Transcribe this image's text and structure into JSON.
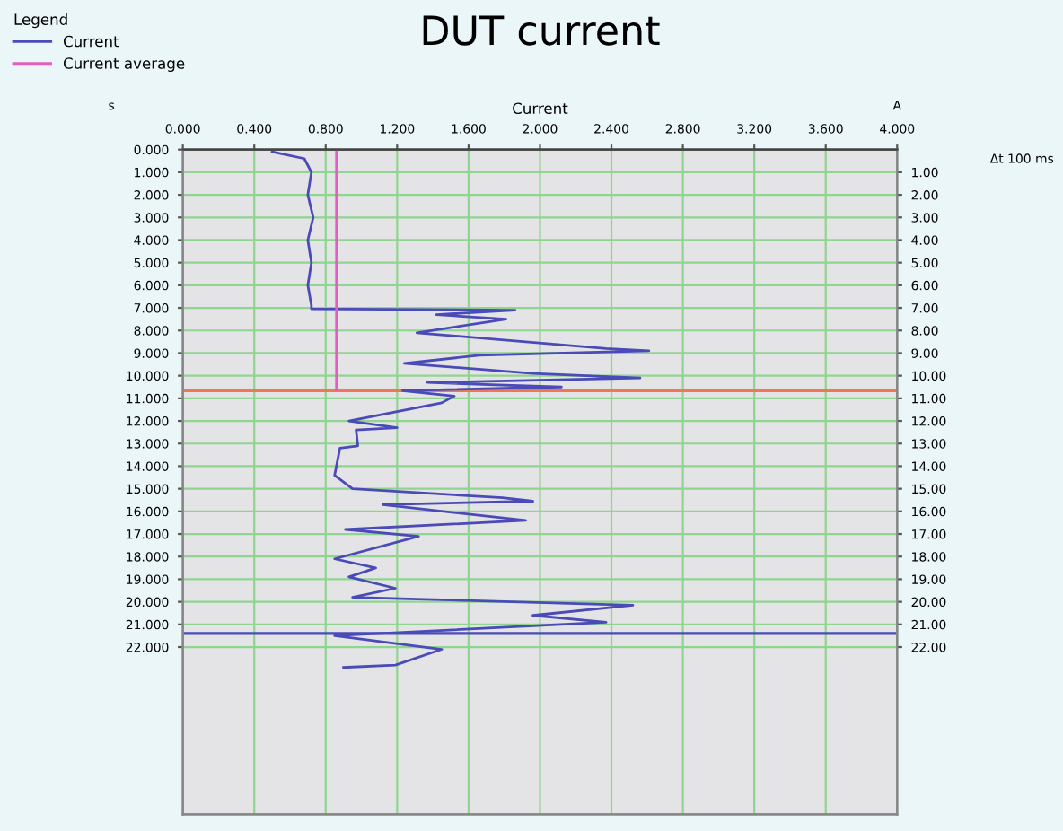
{
  "chart_data": {
    "type": "line",
    "title": "DUT current",
    "xlabel": "Current",
    "ylabel": "s",
    "y2label": "A",
    "legend_title": "Legend",
    "annotations": [
      "Δt 100 ms"
    ],
    "series": [
      {
        "name": "Current",
        "color": "#4a4ab8",
        "x": [
          0.5,
          0.68,
          0.72,
          0.7,
          0.73,
          0.7,
          0.72,
          0.7,
          0.72,
          0.72,
          1.86,
          1.42,
          1.81,
          1.31,
          2.37,
          2.61,
          1.66,
          1.24,
          1.96,
          2.56,
          1.37,
          2.12,
          1.23,
          1.52,
          1.45,
          0.93,
          1.2,
          0.97,
          0.98,
          0.88,
          0.85,
          0.95,
          1.79,
          1.96,
          1.12,
          1.92,
          0.91,
          1.32,
          0.85,
          1.08,
          0.93,
          1.19,
          0.95,
          2.52,
          1.96,
          2.37,
          0.85,
          1.45,
          1.19,
          0.9
        ],
        "values": [
          0.1,
          0.4,
          1.0,
          2.0,
          3.0,
          4.0,
          5.0,
          6.0,
          6.9,
          7.04,
          7.1,
          7.3,
          7.5,
          8.1,
          8.8,
          8.9,
          9.1,
          9.45,
          9.9,
          10.1,
          10.3,
          10.5,
          10.66,
          10.9,
          11.2,
          12.0,
          12.3,
          12.4,
          13.1,
          13.2,
          14.4,
          15.0,
          15.4,
          15.55,
          15.7,
          16.4,
          16.8,
          17.1,
          18.1,
          18.5,
          18.9,
          19.4,
          19.8,
          20.15,
          20.6,
          20.9,
          21.5,
          22.1,
          22.8,
          22.9
        ]
      },
      {
        "name": "Current average",
        "color": "#e060c0",
        "x": [
          0.86,
          0.86
        ],
        "values": [
          0,
          10.66
        ]
      }
    ],
    "ref_lines": [
      {
        "axis": "y",
        "value": 10.66,
        "color": "#f07850"
      },
      {
        "axis": "y",
        "value": 21.4,
        "color": "#4a4ab8"
      }
    ],
    "xlim": [
      0,
      4
    ],
    "ylim": [
      29.4,
      0
    ],
    "y2lim": [
      29.4,
      0
    ],
    "xticks": [
      {
        "value": 0,
        "label": "0.000"
      },
      {
        "value": 0.4,
        "label": "0.400"
      },
      {
        "value": 0.8,
        "label": "0.800"
      },
      {
        "value": 1.2,
        "label": "1.200"
      },
      {
        "value": 1.6,
        "label": "1.600"
      },
      {
        "value": 2.0,
        "label": "2.000"
      },
      {
        "value": 2.4,
        "label": "2.400"
      },
      {
        "value": 2.8,
        "label": "2.800"
      },
      {
        "value": 3.2,
        "label": "3.200"
      },
      {
        "value": 3.6,
        "label": "3.600"
      },
      {
        "value": 4.0,
        "label": "4.000"
      }
    ],
    "yticks": [
      {
        "value": 0,
        "label": "0.000"
      },
      {
        "value": 1,
        "label": "1.000"
      },
      {
        "value": 2,
        "label": "2.000"
      },
      {
        "value": 3,
        "label": "3.000"
      },
      {
        "value": 4,
        "label": "4.000"
      },
      {
        "value": 5,
        "label": "5.000"
      },
      {
        "value": 6,
        "label": "6.000"
      },
      {
        "value": 7,
        "label": "7.000"
      },
      {
        "value": 8,
        "label": "8.000"
      },
      {
        "value": 9,
        "label": "9.000"
      },
      {
        "value": 10,
        "label": "10.000"
      },
      {
        "value": 11,
        "label": "11.000"
      },
      {
        "value": 12,
        "label": "12.000"
      },
      {
        "value": 13,
        "label": "13.000"
      },
      {
        "value": 14,
        "label": "14.000"
      },
      {
        "value": 15,
        "label": "15.000"
      },
      {
        "value": 16,
        "label": "16.000"
      },
      {
        "value": 17,
        "label": "17.000"
      },
      {
        "value": 18,
        "label": "18.000"
      },
      {
        "value": 19,
        "label": "19.000"
      },
      {
        "value": 20,
        "label": "20.000"
      },
      {
        "value": 21,
        "label": "21.000"
      },
      {
        "value": 22,
        "label": "22.000"
      }
    ],
    "y2ticks": [
      {
        "value": 1,
        "label": "1.00"
      },
      {
        "value": 2,
        "label": "2.00"
      },
      {
        "value": 3,
        "label": "3.00"
      },
      {
        "value": 4,
        "label": "4.00"
      },
      {
        "value": 5,
        "label": "5.00"
      },
      {
        "value": 6,
        "label": "6.00"
      },
      {
        "value": 7,
        "label": "7.00"
      },
      {
        "value": 8,
        "label": "8.00"
      },
      {
        "value": 9,
        "label": "9.00"
      },
      {
        "value": 10,
        "label": "10.00"
      },
      {
        "value": 11,
        "label": "11.00"
      },
      {
        "value": 12,
        "label": "12.00"
      },
      {
        "value": 13,
        "label": "13.00"
      },
      {
        "value": 14,
        "label": "14.00"
      },
      {
        "value": 15,
        "label": "15.00"
      },
      {
        "value": 16,
        "label": "16.00"
      },
      {
        "value": 17,
        "label": "17.00"
      },
      {
        "value": 18,
        "label": "18.00"
      },
      {
        "value": 19,
        "label": "19.00"
      },
      {
        "value": 20,
        "label": "20.00"
      },
      {
        "value": 21,
        "label": "21.00"
      },
      {
        "value": 22,
        "label": "22.00"
      }
    ],
    "grid": true,
    "legend": "top left",
    "marker": "none",
    "line_style": "solid"
  }
}
